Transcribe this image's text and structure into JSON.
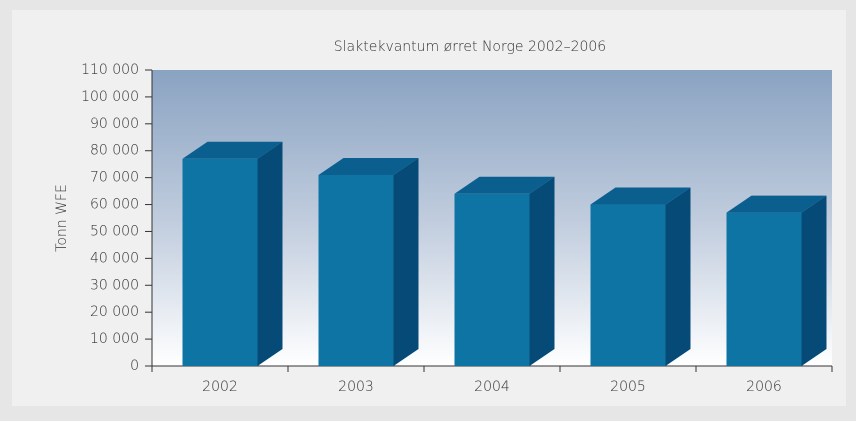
{
  "chart_data": {
    "type": "bar3d",
    "title": "Slaktekvantum ørret Norge 2002–2006",
    "y_label": "Tonn WFE",
    "categories": [
      "2002",
      "2003",
      "2004",
      "2005",
      "2006"
    ],
    "values": [
      77000,
      71000,
      64000,
      60000,
      57000
    ],
    "color": "#0e74a4",
    "ylim": [
      0,
      110000
    ],
    "yticks": [
      0,
      {
        "value": 10000,
        "label": "10 000"
      },
      {
        "value": 20000,
        "label": "20 000"
      },
      {
        "value": 30000,
        "label": "30 000"
      },
      {
        "value": 40000,
        "label": "40 000"
      },
      {
        "value": 50000,
        "label": "50 000"
      },
      {
        "value": 60000,
        "label": "60 000"
      },
      {
        "value": 70000,
        "label": "70 000"
      },
      {
        "value": 80000,
        "label": "80 000"
      },
      {
        "value": 90000,
        "label": "90 000"
      },
      {
        "value": 100000,
        "label": "100 000"
      },
      {
        "value": 110000,
        "label": "110 000"
      }
    ]
  }
}
